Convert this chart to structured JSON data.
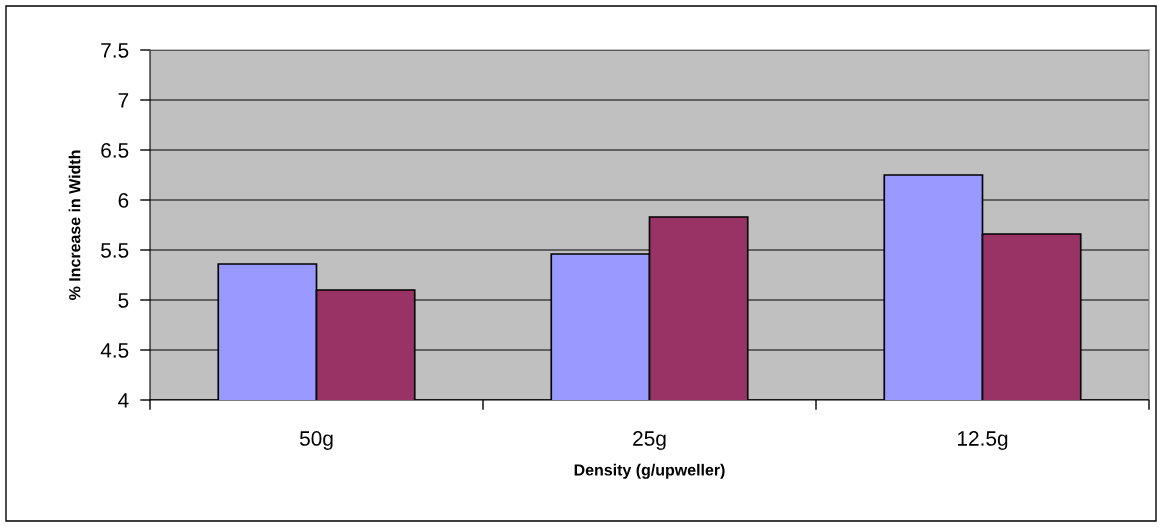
{
  "chart_data": {
    "type": "bar",
    "xlabel": "Density (g/upweller)",
    "ylabel": "% Increase in Width",
    "categories": [
      "50g",
      "25g",
      "12.5g"
    ],
    "series": [
      {
        "color": "#9999ff",
        "values": [
          5.36,
          5.46,
          6.25
        ]
      },
      {
        "color": "#993366",
        "values": [
          5.1,
          5.83,
          5.66
        ]
      }
    ],
    "ylim": [
      4,
      7.5
    ],
    "yticks": [
      4,
      4.5,
      5,
      5.5,
      6,
      6.5,
      7,
      7.5
    ],
    "grid": "y"
  }
}
